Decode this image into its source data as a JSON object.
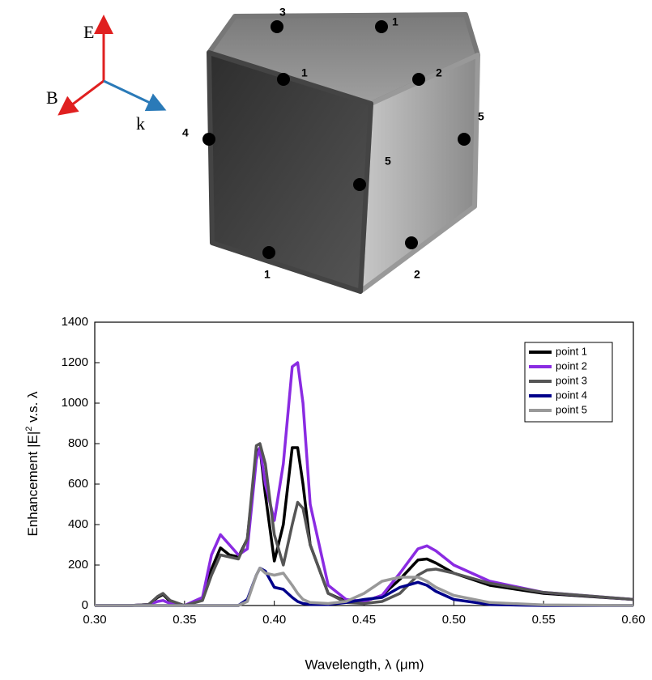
{
  "diagram": {
    "axis_labels": [
      "E",
      "B",
      "k"
    ],
    "point_labels": [
      "3",
      "1",
      "1",
      "2",
      "4",
      "5",
      "5",
      "1",
      "2"
    ]
  },
  "chart_data": {
    "type": "line",
    "xlabel": "Wavelength, λ (μm)",
    "ylabel_parts": [
      "Enhancement |E|",
      "2",
      " v.s. λ"
    ],
    "xlim": [
      0.3,
      0.6
    ],
    "ylim": [
      0,
      1400
    ],
    "xticks": [
      {
        "value": 0.3,
        "label": "0.30"
      },
      {
        "value": 0.35,
        "label": "0.35"
      },
      {
        "value": 0.4,
        "label": "0.40"
      },
      {
        "value": 0.45,
        "label": "0.45"
      },
      {
        "value": 0.5,
        "label": "0.50"
      },
      {
        "value": 0.55,
        "label": "0.55"
      },
      {
        "value": 0.6,
        "label": "0.60"
      }
    ],
    "yticks": [
      0,
      200,
      400,
      600,
      800,
      1000,
      1200,
      1400
    ],
    "grid": false,
    "legend": "upper right",
    "x": [
      0.3,
      0.32,
      0.33,
      0.335,
      0.338,
      0.342,
      0.35,
      0.36,
      0.365,
      0.37,
      0.375,
      0.38,
      0.385,
      0.39,
      0.392,
      0.395,
      0.4,
      0.405,
      0.41,
      0.413,
      0.416,
      0.42,
      0.43,
      0.44,
      0.45,
      0.46,
      0.47,
      0.48,
      0.485,
      0.49,
      0.5,
      0.52,
      0.55,
      0.6
    ],
    "series": [
      {
        "name": "point 1",
        "color": "#000000",
        "values": [
          0,
          0,
          5,
          40,
          55,
          20,
          0,
          30,
          180,
          285,
          250,
          240,
          330,
          750,
          780,
          550,
          220,
          400,
          780,
          780,
          600,
          300,
          60,
          20,
          20,
          50,
          130,
          225,
          230,
          210,
          160,
          100,
          60,
          30
        ]
      },
      {
        "name": "point 2",
        "color": "#8a2be2",
        "values": [
          0,
          0,
          5,
          20,
          25,
          10,
          0,
          40,
          250,
          350,
          300,
          250,
          280,
          720,
          780,
          600,
          420,
          700,
          1180,
          1200,
          1000,
          500,
          100,
          30,
          20,
          50,
          160,
          280,
          295,
          270,
          200,
          120,
          65,
          30
        ]
      },
      {
        "name": "point 3",
        "color": "#555555",
        "values": [
          0,
          0,
          5,
          45,
          60,
          25,
          0,
          25,
          150,
          250,
          240,
          230,
          330,
          790,
          800,
          700,
          350,
          200,
          400,
          510,
          480,
          300,
          60,
          15,
          10,
          20,
          60,
          150,
          175,
          180,
          160,
          110,
          65,
          30
        ]
      },
      {
        "name": "point 4",
        "color": "#00008b",
        "values": [
          0,
          0,
          0,
          0,
          0,
          0,
          0,
          0,
          0,
          0,
          0,
          0,
          30,
          150,
          185,
          170,
          90,
          80,
          40,
          20,
          10,
          5,
          5,
          15,
          30,
          40,
          90,
          115,
          100,
          70,
          30,
          5,
          0,
          0
        ]
      },
      {
        "name": "point 5",
        "color": "#999999",
        "values": [
          0,
          0,
          0,
          0,
          0,
          0,
          0,
          0,
          0,
          0,
          0,
          0,
          20,
          150,
          185,
          160,
          150,
          160,
          100,
          60,
          30,
          15,
          10,
          20,
          60,
          120,
          140,
          140,
          120,
          90,
          50,
          15,
          3,
          0
        ]
      }
    ]
  }
}
